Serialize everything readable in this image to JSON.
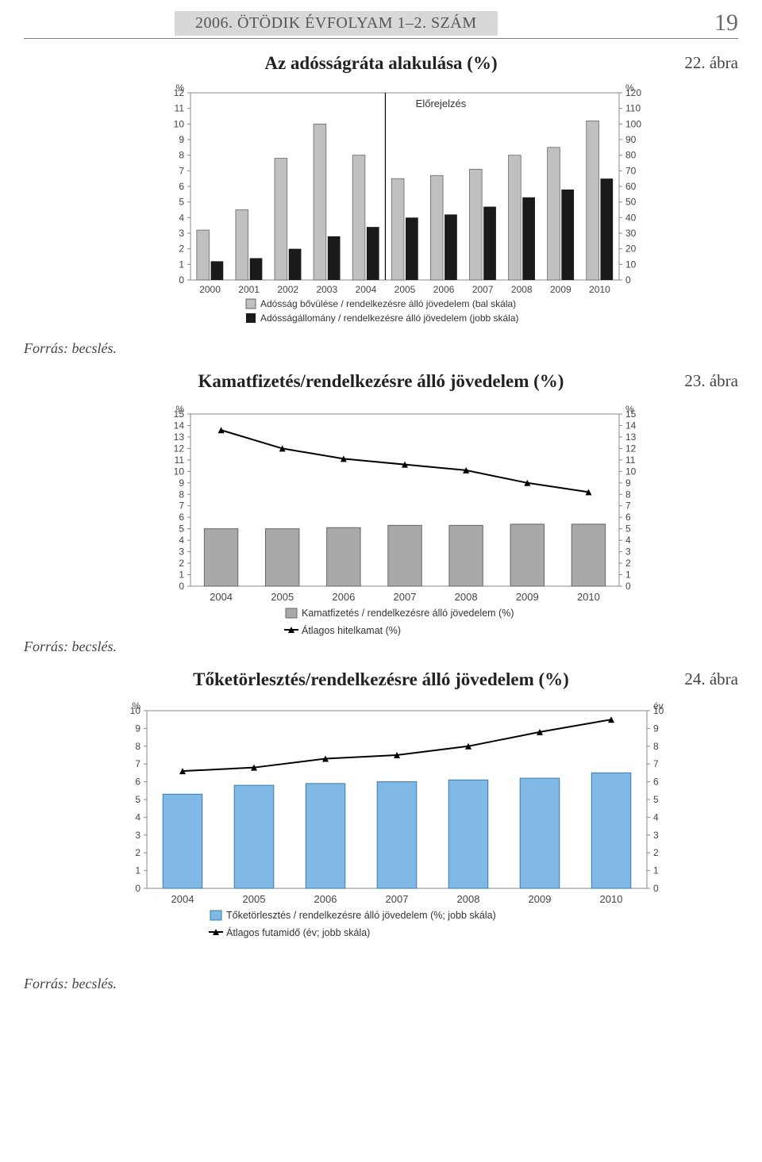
{
  "header": {
    "tab": "2006. ÖTÖDIK ÉVFOLYAM 1–2. SZÁM",
    "page_number": "19"
  },
  "source_label": "Forrás: becslés.",
  "fig22": {
    "label": "22. ábra",
    "title": "Az adósságráta alakulása (%)",
    "type": "bar-dual-axis",
    "years": [
      "2000",
      "2001",
      "2002",
      "2003",
      "2004",
      "2005",
      "2006",
      "2007",
      "2008",
      "2009",
      "2010"
    ],
    "left_unit": "%",
    "right_unit": "%",
    "left_min": 0,
    "left_max": 12,
    "left_step": 1,
    "right_min": 0,
    "right_max": 120,
    "right_step": 10,
    "series_light": [
      3.2,
      4.5,
      7.8,
      10.0,
      8.0,
      6.5,
      6.7,
      7.1,
      8.0,
      8.5,
      10.2
    ],
    "series_dark": [
      1.2,
      1.4,
      2.0,
      2.8,
      3.4,
      4.0,
      4.2,
      4.7,
      5.3,
      5.8,
      6.5
    ],
    "annotation": "Előrejelzés",
    "forecast_divider_after_index": 4,
    "legend": [
      "Adósság bővülése / rendelkezésre álló jövedelem (bal skála)",
      "Adósságállomány / rendelkezésre álló jövedelem (jobb skála)"
    ],
    "colors": {
      "light": "#c0c0c0",
      "dark": "#1a1a1a",
      "border": "#666"
    }
  },
  "fig23": {
    "label": "23. ábra",
    "title": "Kamatfizetés/rendelkezésre álló jövedelem (%)",
    "type": "bar-line",
    "years": [
      "2004",
      "2005",
      "2006",
      "2007",
      "2008",
      "2009",
      "2010"
    ],
    "left_unit": "%",
    "right_unit": "%",
    "y_min": 0,
    "y_max": 15,
    "y_step": 1,
    "bars": [
      5.0,
      5.0,
      5.1,
      5.3,
      5.3,
      5.4,
      5.4
    ],
    "line": [
      13.6,
      12.0,
      11.1,
      10.6,
      10.1,
      9.0,
      8.2
    ],
    "legend": [
      "Kamatfizetés / rendelkezésre álló jövedelem (%)",
      "Átlagos hitelkamat (%)"
    ],
    "colors": {
      "bar": "#a9a9a9",
      "bar_border": "#666",
      "line": "#000"
    }
  },
  "fig24": {
    "label": "24. ábra",
    "title": "Tőketörlesztés/rendelkezésre álló jövedelem (%)",
    "type": "bar-line",
    "years": [
      "2004",
      "2005",
      "2006",
      "2007",
      "2008",
      "2009",
      "2010"
    ],
    "left_unit": "%",
    "right_unit": "év",
    "y_min": 0,
    "y_max": 10,
    "y_step": 1,
    "bars": [
      5.3,
      5.8,
      5.9,
      6.0,
      6.1,
      6.2,
      6.5
    ],
    "line": [
      6.6,
      6.8,
      7.3,
      7.5,
      8.0,
      8.8,
      9.5
    ],
    "legend": [
      "Tőketörlesztés / rendelkezésre álló jövedelem (%; jobb skála)",
      "Átlagos futamidő (év; jobb skála)"
    ],
    "colors": {
      "bar": "#80b9e6",
      "bar_border": "#3a7aa8",
      "line": "#000"
    }
  }
}
